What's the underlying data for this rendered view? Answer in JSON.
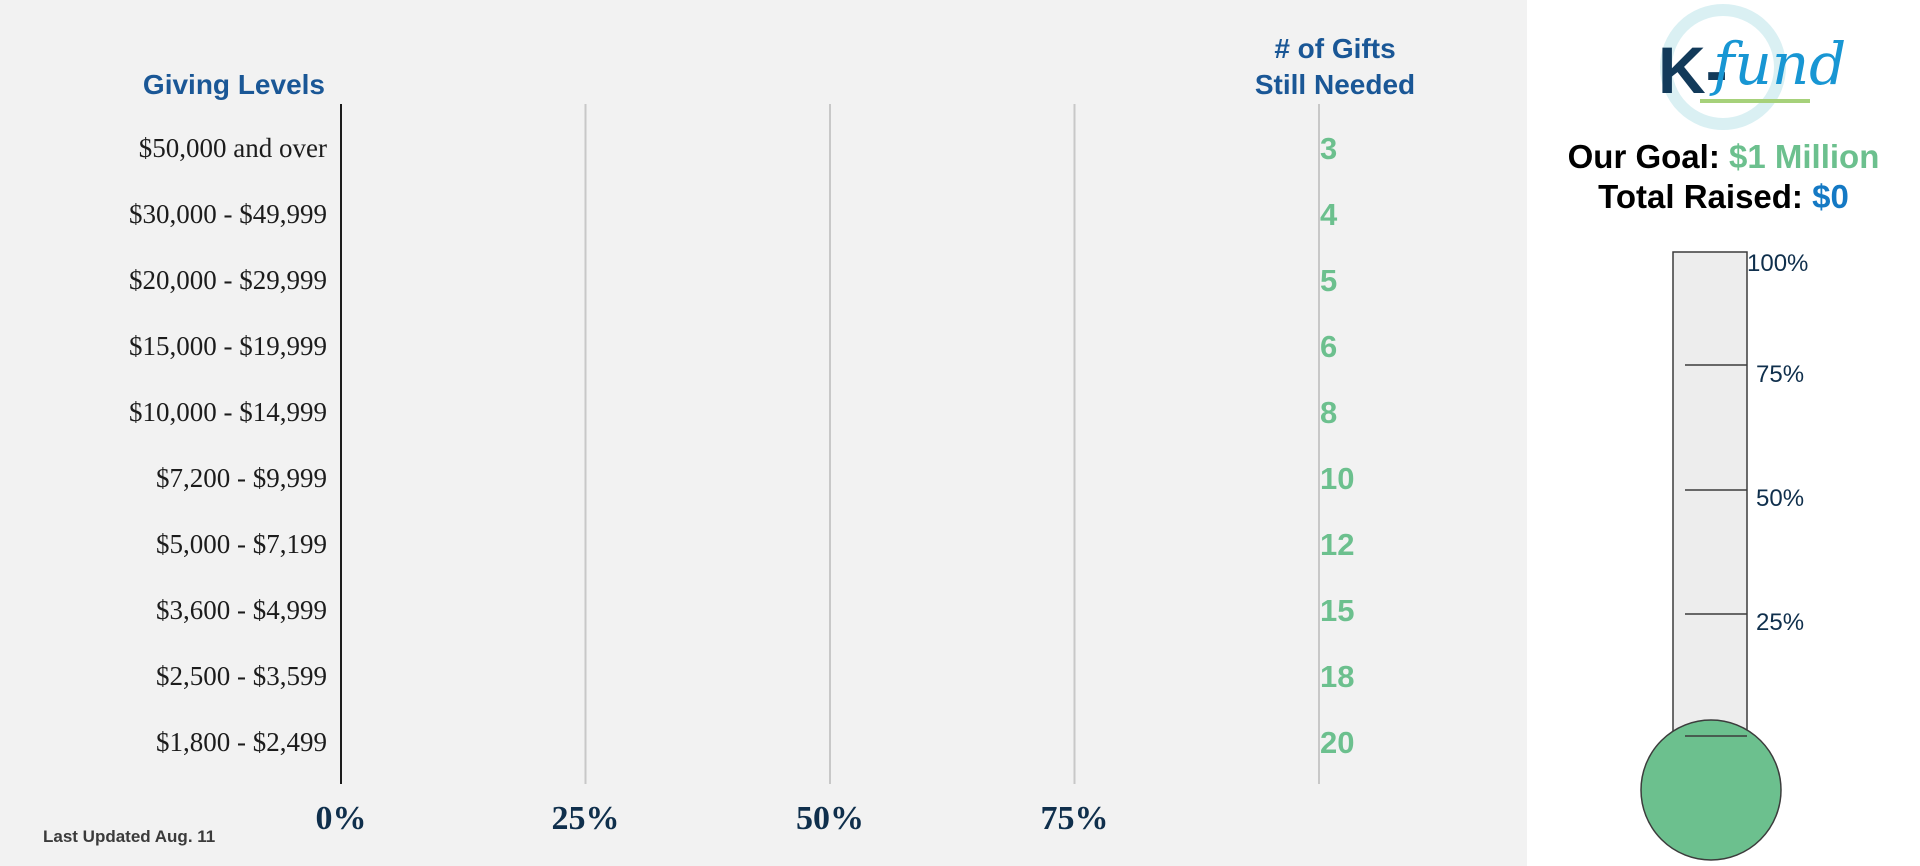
{
  "header": {
    "giving_levels": "Giving Levels",
    "gifts_line1": "# of Gifts",
    "gifts_line2": "Still Needed"
  },
  "chart_data": {
    "type": "bar",
    "orientation": "horizontal",
    "categories": [
      "$50,000 and over",
      "$30,000 - $49,999",
      "$20,000 - $29,999",
      "$15,000 - $19,999",
      "$10,000 - $14,999",
      "$7,200 - $9,999",
      "$5,000 - $7,199",
      "$3,600 - $4,999",
      "$2,500 - $3,599",
      "$1,800 - $2,499"
    ],
    "values": [
      0,
      0,
      0,
      0,
      0,
      0,
      0,
      0,
      0,
      0
    ],
    "gifts_still_needed": [
      3,
      4,
      5,
      6,
      8,
      10,
      12,
      15,
      18,
      20
    ],
    "x_ticks": [
      "0%",
      "25%",
      "50%",
      "75%"
    ],
    "xlim": [
      0,
      100
    ],
    "grid": true
  },
  "footer": {
    "updated": "Last Updated Aug. 11"
  },
  "logo": {
    "k": "K-",
    "fund": "fund"
  },
  "goal": {
    "label": "Our Goal:",
    "value": "$1 Million"
  },
  "raised": {
    "label": "Total Raised:",
    "value": "$0"
  },
  "thermometer": {
    "progress": 0,
    "ticks": [
      "100%",
      "75%",
      "50%",
      "25%"
    ]
  },
  "colors": {
    "accent_green": "#6cc08e",
    "header_blue": "#1a5796",
    "raised_blue": "#1479c4"
  }
}
